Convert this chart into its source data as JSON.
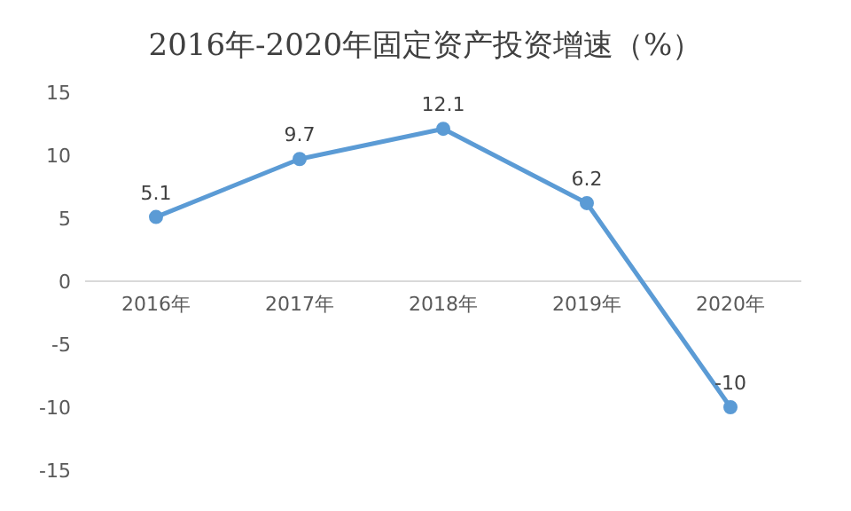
{
  "chart_data": {
    "type": "line",
    "title": "2016年-2020年固定资产投资增速（%）",
    "categories": [
      "2016年",
      "2017年",
      "2018年",
      "2019年",
      "2020年"
    ],
    "series": [
      {
        "color": "#5b9bd5",
        "values": [
          5.1,
          9.7,
          12.1,
          6.2,
          -10
        ]
      }
    ],
    "ylim": [
      -15,
      15
    ],
    "yticks": [
      -15,
      -10,
      -5,
      0,
      5,
      10,
      15
    ],
    "grid": false,
    "legend": false,
    "marker": "circle",
    "line_style": "solid",
    "data_labels": true
  }
}
